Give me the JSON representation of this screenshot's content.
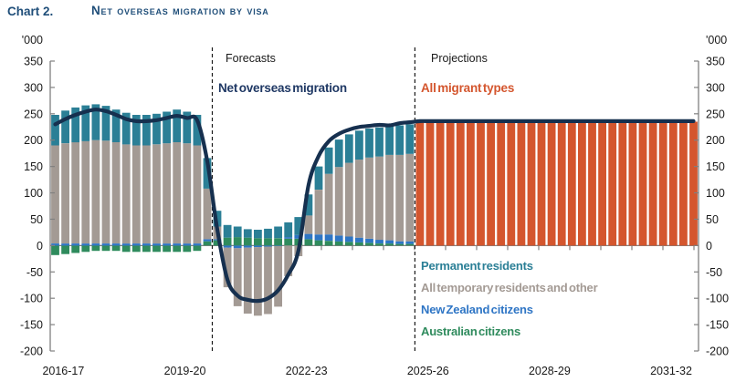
{
  "title": {
    "label": "Chart 2.",
    "heading": "Net overseas migration by visa"
  },
  "annotations": {
    "forecasts": "Forecasts",
    "projections": "Projections",
    "line_series": "Net overseas migration",
    "projection_series": "All migrant types"
  },
  "legend": {
    "items": [
      {
        "label": "Permanent residents",
        "color": "teal"
      },
      {
        "label": "All temporary residents and other",
        "color": "gray"
      },
      {
        "label": "New Zealand citizens",
        "color": "blue"
      },
      {
        "label": "Australian citizens",
        "color": "green"
      }
    ]
  },
  "colors": {
    "teal": "#2B7F96",
    "gray": "#A39A94",
    "blue": "#2E75C5",
    "green": "#2F8B5D",
    "orange": "#D4562E",
    "navy": "#16304F",
    "navy_text": "#1F3864",
    "title": "#1F4E79",
    "axis": "#808080",
    "text": "#1a1a1a"
  },
  "chart_data": {
    "type": "stacked_bar_with_line",
    "unit": "'000",
    "quarters_total": 64,
    "x_axis": {
      "labels": [
        "2016-17",
        "2019-20",
        "2022-23",
        "2025-26",
        "2028-29",
        "2031-32"
      ]
    },
    "y_axis": {
      "min": -200,
      "max": 350,
      "step": 50,
      "ticks": [
        350,
        300,
        250,
        200,
        150,
        100,
        50,
        0,
        -50,
        -100,
        -150,
        -200
      ]
    },
    "series": [
      {
        "name": "Australian citizens",
        "color": "green",
        "values": [
          -18,
          -16,
          -14,
          -12,
          -10,
          -10,
          -10,
          -12,
          -12,
          -12,
          -12,
          -12,
          -12,
          -12,
          -10,
          8,
          10,
          15,
          16,
          15,
          14,
          14,
          14,
          13,
          13,
          12,
          10,
          9,
          8,
          7,
          6,
          5,
          4,
          4,
          3,
          3
        ]
      },
      {
        "name": "New Zealand citizens",
        "color": "blue",
        "values": [
          4,
          4,
          4,
          4,
          4,
          4,
          4,
          4,
          4,
          4,
          4,
          4,
          4,
          4,
          4,
          4,
          2,
          -4,
          -5,
          -4,
          -3,
          -2,
          -1,
          3,
          7,
          10,
          11,
          12,
          11,
          10,
          9,
          8,
          7,
          6,
          5,
          5
        ]
      },
      {
        "name": "All temporary residents and other",
        "color": "gray",
        "values": [
          186,
          190,
          192,
          194,
          196,
          195,
          192,
          188,
          186,
          186,
          188,
          190,
          192,
          190,
          186,
          96,
          24,
          -75,
          -110,
          -125,
          -130,
          -128,
          -115,
          -58,
          -20,
          35,
          85,
          115,
          130,
          140,
          148,
          154,
          158,
          162,
          164,
          166
        ]
      },
      {
        "name": "Permanent residents",
        "color": "teal",
        "values": [
          58,
          62,
          66,
          68,
          68,
          66,
          62,
          60,
          58,
          58,
          58,
          60,
          62,
          60,
          58,
          58,
          30,
          24,
          20,
          16,
          16,
          18,
          22,
          28,
          34,
          40,
          44,
          50,
          52,
          54,
          55,
          55,
          55,
          54,
          56,
          56
        ]
      }
    ],
    "projection_series": {
      "name": "All migrant types",
      "color": "orange",
      "start_quarter": 37,
      "quarters": 28,
      "value": 235
    },
    "line_series": {
      "name": "Net overseas migration",
      "color": "navy",
      "values": [
        230,
        240,
        248,
        254,
        258,
        255,
        248,
        240,
        236,
        236,
        238,
        242,
        246,
        242,
        238,
        160,
        30,
        -65,
        -95,
        -103,
        -105,
        -100,
        -85,
        -55,
        -10,
        115,
        170,
        198,
        212,
        220,
        225,
        227,
        229,
        228,
        232,
        234,
        236,
        236,
        236,
        236,
        236,
        236,
        236,
        236,
        236,
        236,
        236,
        236,
        236,
        236,
        236,
        236,
        236,
        236,
        236,
        236,
        236,
        236,
        236,
        236,
        236,
        236,
        236,
        236
      ]
    },
    "markers": {
      "forecast_start_quarter": 17,
      "projection_start_quarter": 37
    }
  }
}
